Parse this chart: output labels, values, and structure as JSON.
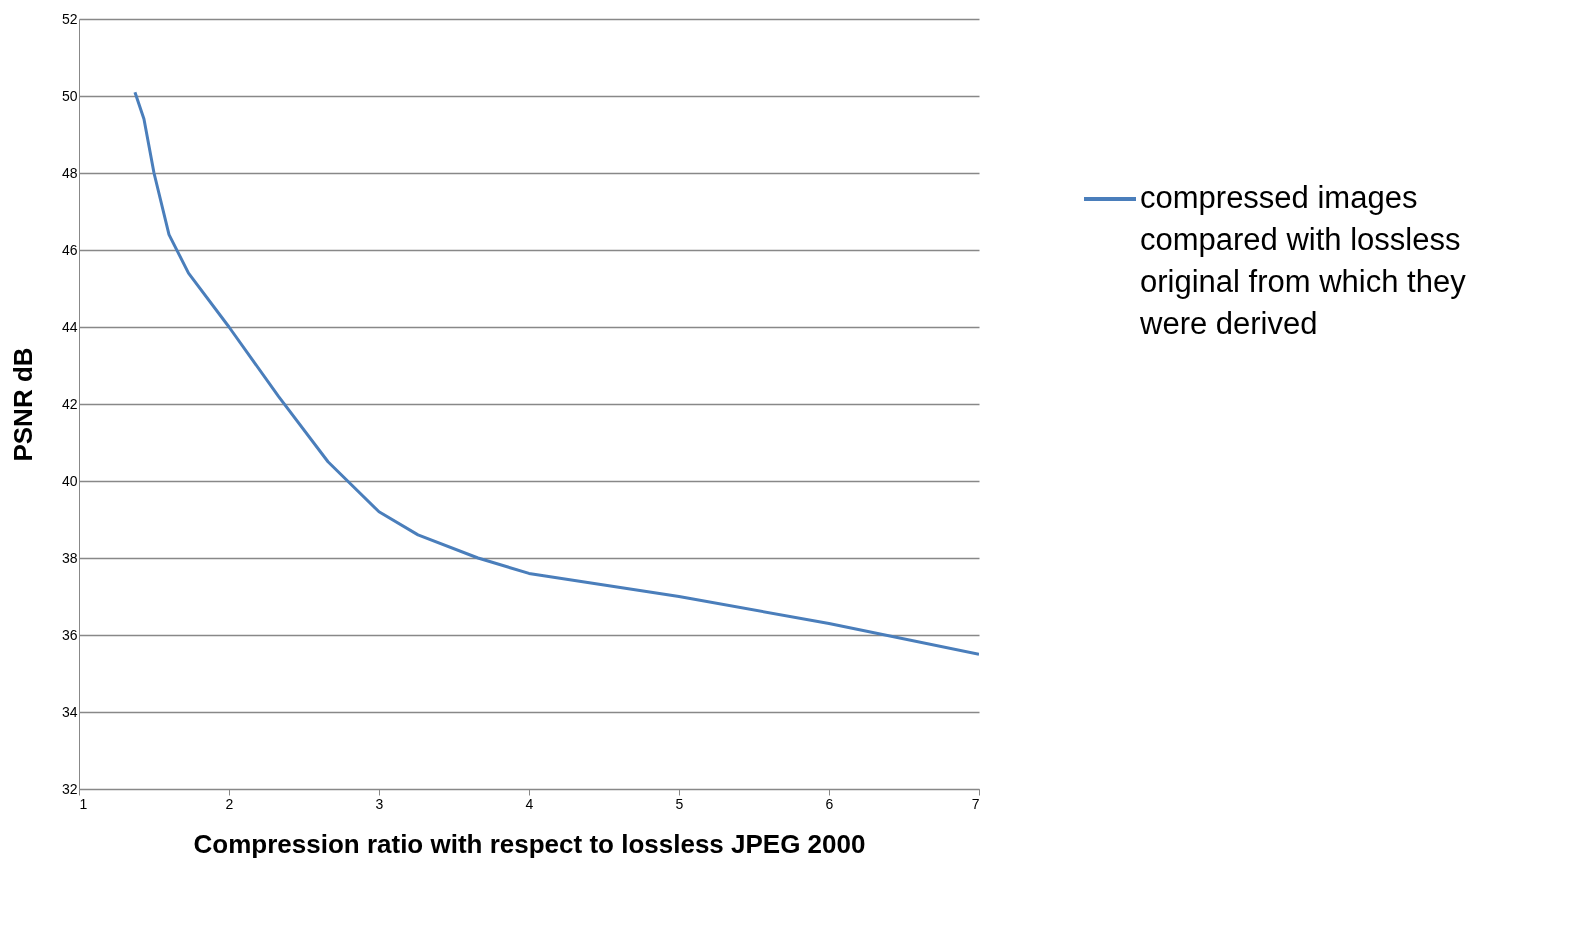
{
  "chart_data": {
    "type": "line",
    "xlabel": "Compression ratio with respect to lossless JPEG 2000",
    "ylabel": "PSNR dB",
    "x": [
      1.373,
      1.433,
      1.5,
      1.6,
      1.73,
      2.0,
      2.33,
      2.66,
      3.0,
      3.26,
      3.66,
      4.0,
      5.0,
      6.0,
      7.0
    ],
    "series": [
      {
        "name": "compressed images compared with lossless original from which they were derived",
        "color": "#4a7ebb",
        "values": [
          50.1,
          49.4,
          48.0,
          46.4,
          45.4,
          44.0,
          42.2,
          40.5,
          39.2,
          38.6,
          38.0,
          37.6,
          37.0,
          36.3,
          35.5
        ]
      }
    ],
    "xlim": [
      1,
      7
    ],
    "xticks": [
      1,
      2,
      3,
      4,
      5,
      6,
      7
    ],
    "ylim": [
      32,
      52
    ],
    "yticks": [
      32,
      34,
      36,
      38,
      40,
      42,
      44,
      46,
      48,
      50,
      52
    ],
    "grid": "y",
    "legend": "right",
    "marker": "none",
    "line_style": "solid"
  }
}
